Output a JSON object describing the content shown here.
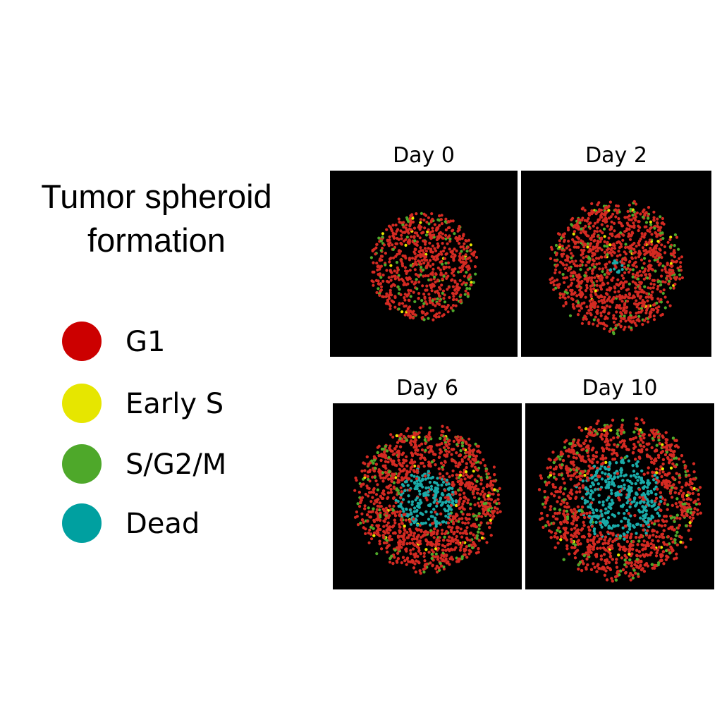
{
  "title": {
    "line1": "Tumor spheroid",
    "line2": "formation"
  },
  "legend": [
    {
      "label": "G1",
      "color": "#cc0000"
    },
    {
      "label": "Early S",
      "color": "#e6e600"
    },
    {
      "label": "S/G2/M",
      "color": "#4ea82a"
    },
    {
      "label": "Dead",
      "color": "#00a0a0"
    }
  ],
  "colors": {
    "g1": "#d42a22",
    "early_s": "#e6e600",
    "sg2m": "#4ea82a",
    "dead": "#1aaaa8",
    "background": "#000000"
  },
  "panels": [
    {
      "label": "Day 0",
      "spheroid_radius": 0.58,
      "dead_core_radius": 0.0,
      "cell_count": 760
    },
    {
      "label": "Day 2",
      "spheroid_radius": 0.67,
      "dead_core_radius": 0.08,
      "cell_count": 1200
    },
    {
      "label": "Day 6",
      "spheroid_radius": 0.74,
      "dead_core_radius": 0.3,
      "cell_count": 2200
    },
    {
      "label": "Day 10",
      "spheroid_radius": 0.82,
      "dead_core_radius": 0.42,
      "cell_count": 3200
    }
  ]
}
